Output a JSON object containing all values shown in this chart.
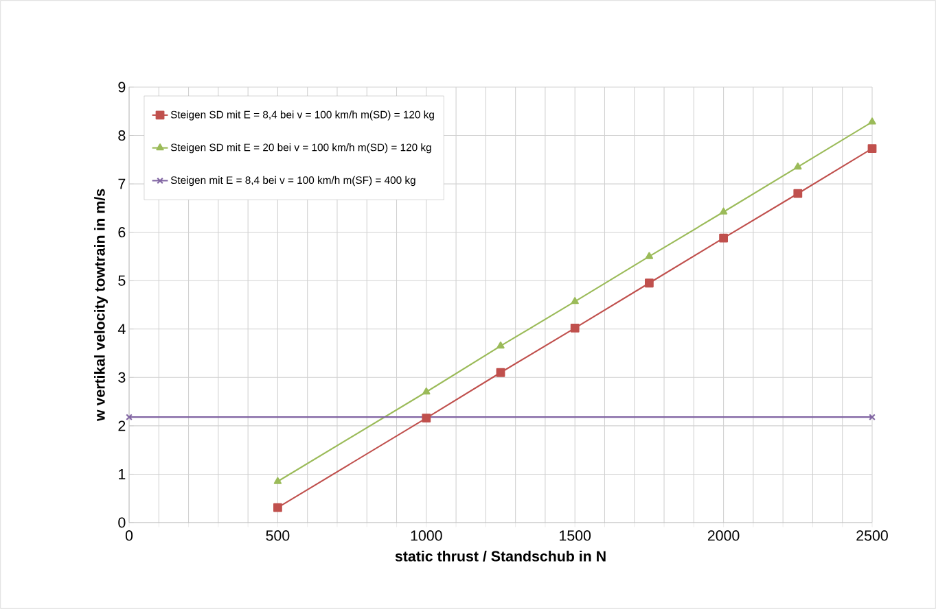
{
  "chart_data": {
    "type": "line",
    "xlabel": "static thrust / Standschub in N",
    "ylabel": "w   vertikal velocity     towtrain  in m/s",
    "xlim": [
      0,
      2500
    ],
    "ylim": [
      0,
      9
    ],
    "xticks": [
      0,
      {
        "value": 100,
        "label": null
      },
      {
        "value": 200,
        "label": null
      },
      {
        "value": 300,
        "label": null
      },
      {
        "value": 400,
        "label": null
      },
      500,
      {
        "value": 600,
        "label": null
      },
      {
        "value": 700,
        "label": null
      },
      {
        "value": 800,
        "label": null
      },
      {
        "value": 900,
        "label": null
      },
      1000,
      {
        "value": 1100,
        "label": null
      },
      {
        "value": 1200,
        "label": null
      },
      {
        "value": 1300,
        "label": null
      },
      {
        "value": 1400,
        "label": null
      },
      1500,
      {
        "value": 1600,
        "label": null
      },
      {
        "value": 1700,
        "label": null
      },
      {
        "value": 1800,
        "label": null
      },
      {
        "value": 1900,
        "label": null
      },
      2000,
      {
        "value": 2100,
        "label": null
      },
      {
        "value": 2200,
        "label": null
      },
      {
        "value": 2300,
        "label": null
      },
      {
        "value": 2400,
        "label": null
      },
      2500
    ],
    "yticks": [
      0,
      1,
      2,
      3,
      4,
      5,
      6,
      7,
      8,
      9
    ],
    "grid": true,
    "legend": "top left",
    "series": [
      {
        "name": "Steigen SD mit   E = 8,4 bei  v =  100   km/h  m(SD) = 120   kg",
        "color": "#c0504d",
        "marker": "square",
        "x": [
          500,
          1000,
          1250,
          1500,
          1750,
          2000,
          2250,
          2500
        ],
        "values": [
          0.31,
          2.16,
          3.1,
          4.02,
          4.95,
          5.88,
          6.8,
          7.73
        ]
      },
      {
        "name": "Steigen SD mit   E = 20 bei  v  =  100   km/h  m(SD) = 120   kg",
        "color": "#9bbb59",
        "marker": "triangle",
        "x": [
          500,
          1000,
          1250,
          1500,
          1750,
          2000,
          2250,
          2500
        ],
        "values": [
          0.85,
          2.7,
          3.65,
          4.57,
          5.5,
          6.42,
          7.35,
          8.28
        ]
      },
      {
        "name": "Steigen mit   E = 8,4 bei  v  =  100   km/h   m(SF)  = 400   kg",
        "color": "#8064a2",
        "marker": "cross",
        "x": [
          0,
          2500
        ],
        "values": [
          2.18,
          2.18
        ]
      }
    ]
  }
}
